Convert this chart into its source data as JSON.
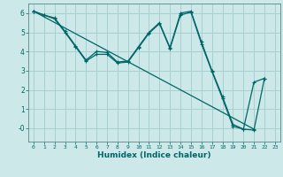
{
  "xlabel": "Humidex (Indice chaleur)",
  "bg_color": "#cce8e8",
  "grid_color": "#a8d0d0",
  "line_color": "#006666",
  "spine_color": "#558888",
  "xlim": [
    -0.5,
    23.5
  ],
  "ylim": [
    -0.7,
    6.5
  ],
  "xticks": [
    0,
    1,
    2,
    3,
    4,
    5,
    6,
    7,
    8,
    9,
    10,
    11,
    12,
    13,
    14,
    15,
    16,
    17,
    18,
    19,
    20,
    21,
    22,
    23
  ],
  "yticks": [
    0,
    1,
    2,
    3,
    4,
    5,
    6
  ],
  "ytick_labels": [
    "-0",
    "1",
    "2",
    "3",
    "4",
    "5",
    "6"
  ],
  "line1_x": [
    0,
    1,
    2,
    3,
    4,
    5,
    6,
    7,
    8,
    9,
    10,
    11,
    12,
    13,
    14,
    15,
    16,
    17,
    18,
    19,
    20,
    21,
    22
  ],
  "line1_y": [
    6.1,
    5.9,
    5.75,
    5.05,
    4.3,
    3.55,
    4.0,
    3.95,
    3.45,
    3.5,
    4.25,
    5.0,
    5.5,
    4.2,
    6.0,
    6.1,
    4.5,
    3.0,
    1.65,
    0.2,
    -0.05,
    -0.1,
    2.6
  ],
  "line2_x": [
    0,
    1,
    2,
    3,
    4,
    5,
    6,
    7,
    8,
    9,
    10,
    11,
    12,
    13,
    14,
    15,
    16,
    17,
    18,
    19,
    20,
    21,
    22
  ],
  "line2_y": [
    6.1,
    5.9,
    5.7,
    5.0,
    4.25,
    3.5,
    3.85,
    3.85,
    3.4,
    3.45,
    4.2,
    4.95,
    5.45,
    4.15,
    5.9,
    6.05,
    4.4,
    2.95,
    1.55,
    0.1,
    -0.05,
    2.4,
    2.6
  ],
  "line3_x": [
    0,
    21
  ],
  "line3_y": [
    6.1,
    -0.05
  ],
  "marker": "+"
}
